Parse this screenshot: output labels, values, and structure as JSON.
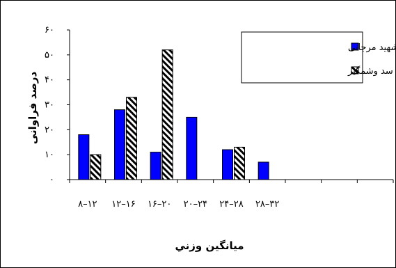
{
  "chart_data": {
    "type": "bar",
    "categories": [
      "۸–۱۲",
      "۱۲–۱۶",
      "۱۶–۲۰",
      "۲۰–۲۴",
      "۲۴–۲۸",
      "۲۸–۳۲",
      "",
      "",
      ""
    ],
    "series": [
      {
        "name": "شهید مرجانی",
        "values": [
          18,
          28,
          11,
          25,
          12,
          7,
          null,
          null,
          null
        ],
        "color": "#0000ff",
        "pattern": "solid"
      },
      {
        "name": "سد وشمگیر",
        "values": [
          10,
          33,
          52,
          null,
          13,
          null,
          null,
          null,
          null
        ],
        "color": "#000000",
        "pattern": "diagonal-stripes"
      }
    ],
    "ylim": [
      0,
      60
    ],
    "yticks": [
      0,
      10,
      20,
      30,
      40,
      50,
      60
    ],
    "ytick_labels": [
      "۰",
      "۱۰",
      "۲۰",
      "۳۰",
      "۴۰",
      "۵۰",
      "۶۰"
    ],
    "xlabel": "ميانگين وزني",
    "ylabel": "درصد فراوانی",
    "legend_position": "top-right",
    "grid": false
  }
}
